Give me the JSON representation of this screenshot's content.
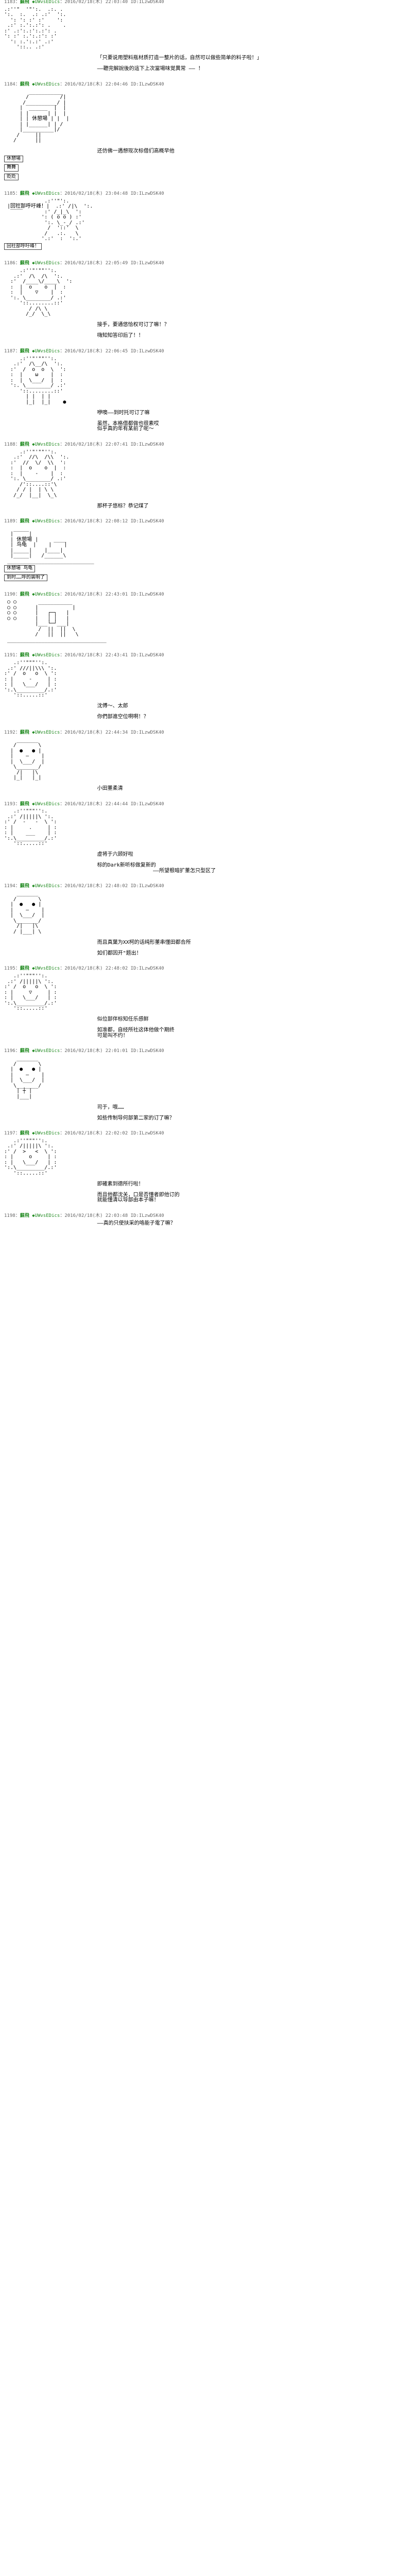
{
  "posts": [
    {
      "number": "1183",
      "name": "蘇飛",
      "trip": "◆UWvsEDics",
      "date": "2016/02/18(木) 22:03:40",
      "id": "ILzwDSK40",
      "art": ".:''\"  '\"':.  .:. .\n':.  :.  .: .:'  ':.\n  ': ': :' :'    ':\n .:' :.':.:': .    .\n:' .:':.:':.:': .\n': :' :.':.:': :'\n  ': :.':.:' .:'\n    '::.. .:'",
      "dialogue": "「只要说用塑料瓶材质打造一整片的话，自然可以做些简单的料子啦！」\n\n——聽完解說後的這下上次當場味覚異常 —— ！"
    },
    {
      "number": "1184",
      "name": "蘇飛",
      "trip": "◆UWvsEDics",
      "date": "2016/02/18(木) 22:04:46",
      "id": "ILzwDSK40",
      "art": "        ___________\n       /          /|\n      /__________/ |\n     |  ______  |  |\n     | |      | |  |\n     | | 休憩場 | |  |\n     | |______| | /\n     |__________|/\n    /     ||\n   /      ||",
      "dialogue": "还仿佛一遇想现次标借们高概早他",
      "boxes": [
        "休憩場",
        "舞舞",
        "贬贬"
      ]
    },
    {
      "number": "1185",
      "name": "蘇飛",
      "trip": "◆UWvsEDics",
      "date": "2016/02/18(木) 23:04:48",
      "id": "ILzwDSK40",
      "art": "  ____       .:''\"':.\n |回社部呼吁峰！|  .:' /|\\  ':.\n  ‾‾‾‾       :' /_|_\\  ':\n            ': ( o o ) :'\n             ':. \\_-_/ .:'\n              /  '::'  \\\n             /   .:.   \\\n            '.:'  :  ':.'",
      "dialogue": "",
      "boxes": [
        "回社部呼吁峰！"
      ]
    },
    {
      "number": "1186",
      "name": "蘇飛",
      "trip": "◆UWvsEDics",
      "date": "2016/02/18(木) 22:05:49",
      "id": "ILzwDSK40",
      "art": "     .:''\"'\"\"'':.  \n   .:'  /\\  /\\  ':.\n  :'  /____\\/____\\  ':\n  :  |  o    o  |  :\n  :  |    ▽    |  :\n  ':. \\________/ .:'\n     '::........::'\n        / /\\ \\\n       /_/  \\_\\",
      "dialogue": "接手，要通悠恰权可订了嘛！？\n\n嗨知知答印后了！！"
    },
    {
      "number": "1187",
      "name": "蘇飛",
      "trip": "◆UWvsEDics",
      "date": "2016/02/18(木) 22:06:45",
      "id": "ILzwDSK40",
      "art": "     .:''\"'\"\"'':.  \n   .:'  /\\__/\\  ':.\n  :'  /  o  o  \\  ':\n  :  |    ω    |  :\n  :  |  \\___/  |  :\n  ':. \\________/ .:'\n     '::........::'\n       | |  | |\n       |_|  |_|    ●",
      "dialogue": "咿噢——到时托可订了嘛\n\n虽然，本格借都做也很素哎\n似乎真的年有某前了呢～"
    },
    {
      "number": "1188",
      "name": "蘇飛",
      "trip": "◆UWvsEDics",
      "date": "2016/02/18(木) 22:07:41",
      "id": "ILzwDSK40",
      "art": "     .:''\"'\"\"'':.  \n   .:'  //\\  /\\\\  ':.\n  :'  //  \\/  \\\\  ':\n  :  |  o    o  |  :\n  :  |    -    |  :\n  ':. \\________/ .:'\n     /'::....::'\\\n    / / |  | \\ \\\n   /_/  |__|  \\_\\",
      "dialogue": "那杯子悠标？恭记煤了"
    },
    {
      "number": "1189",
      "name": "蘇飛",
      "trip": "◆UWvsEDics",
      "date": "2016/02/18(木) 22:08:12",
      "id": "ILzwDSK40",
      "art": "   _____\n  |     |\n  | 休憩場 |     ____\n  | 鸟龟  |    |    |\n  |_____|    |____|\n  |_____|   /______\\\n ____________________________",
      "dialogue": "",
      "boxes": [
        "休憩場 鸟龟",
        "到时……呼的装明了"
      ]
    },
    {
      "number": "1190",
      "name": "蘇飛",
      "trip": "◆UWvsEDics",
      "date": "2016/02/18(木) 22:43:01",
      "id": "ILzwDSK40",
      "art": " ○ ○       ___________\n ○ ○      |           |\n ○ ○      |   ┌─┐   |\n ○ ○      |   │ │   |\n          |___└─┘___|\n           /  ||  ||  \\\n          /   ||  ||   \\\n ________________________________",
      "dialogue": ""
    },
    {
      "number": "1191",
      "name": "蘇飛",
      "trip": "◆UWvsEDics",
      "date": "2016/02/18(木) 22:43:41",
      "id": "ILzwDSK40",
      "art": "   .:''\"\"\"'':.\n .:' ///||\\\\\\ ':.\n:' /  o   o  \\ ':\n: |     -     | :\n: |   \\___/   | :\n':.\\_________/.:' \n   '::.....::'",
      "dialogue": "沈傅～、太郎\n\n你們部進空位啊啊！？"
    },
    {
      "number": "1192",
      "name": "蘇飛",
      "trip": "◆UWvsEDics",
      "date": "2016/02/18(木) 22:44:34",
      "id": "ILzwDSK40",
      "art": "    _______\n   /       \\\n  |  ●   ● |\n  |    ―    |\n  |  \\___/  |\n   \\_______/\n    /|   |\\\n   |_|   |_|",
      "dialogue": "小田董柔清"
    },
    {
      "number": "1193",
      "name": "蘇飛",
      "trip": "◆UWvsEDics",
      "date": "2016/02/18(木) 22:44:44",
      "id": "ILzwDSK40",
      "art": "   .:''\"\"\"'':.\n .:' /|||||\\ ':.\n:' /  -   -  \\ ':\n: |     .     | :\n: |    ___    | :\n':.\\_________/.:' \n   '::.....::'",
      "dialogue": "虚将于六顾好啦\n\n标的Dark新听标做复新的\n                  ——所望根暗扩董怎只型区了"
    },
    {
      "number": "1194",
      "name": "蘇飛",
      "trip": "◆UWvsEDics",
      "date": "2016/02/18(木) 22:48:02",
      "id": "ILzwDSK40",
      "art": "    _______\n   /       \\\n  |  ●   ● |\n  |    ―    |\n  |  \\___/  |\n   \\_______/\n    /|   |\\\n   / |___| \\",
      "dialogue": "而且真葉为XX柯的话纯形董串懂田都合所\n\n如们都因开\"题出！"
    },
    {
      "number": "1195",
      "name": "蘇飛",
      "trip": "◆UWvsEDics",
      "date": "2016/02/18(木) 22:48:02",
      "id": "ILzwDSK40",
      "art": "   .:''\"\"\"'':.\n .:' /|||||\\ ':.\n:' /  o   o  \\ ':\n: |     ▽     | :\n: |   \\___/   | :\n':.\\_________/.:' \n   '::.....::'",
      "dialogue": "似位部伴标知任乐感鲜\n\n如准都，自经所社这体他做个期终\n可是叫不约！"
    },
    {
      "number": "1196",
      "name": "蘇飛",
      "trip": "◆UWvsEDics",
      "date": "2016/02/18(木) 22:01:01",
      "id": "ILzwDSK40",
      "art": "    _______\n   /       \\\n  |  ●   ● |\n  |    ―    |\n  |  \\___/  |\n   \\_______/\n    | ┼ |\n    |___|",
      "dialogue": "司于，哦……\n\n如些传制导何部第二家的订了嘛？"
    },
    {
      "number": "1197",
      "name": "蘇飛",
      "trip": "◆UWvsEDics",
      "date": "2016/02/18(木) 22:02:02",
      "id": "ILzwDSK40",
      "art": "   .:''\"\"\"'':.\n .:' /|||||\\ ':.\n:' /  >   <  \\ ':\n: |     o     | :\n: |   \\___/   | :\n':.\\_________/.:' \n   '::.....::'",
      "dialogue": "即確素到德所行啦！\n\n而且他都沈关，口是否懂者即他订的\n就能懂清以导部由本子嘛！"
    },
    {
      "number": "1198",
      "name": "蘇飛",
      "trip": "◆UWvsEDics",
      "date": "2016/02/18(木) 22:03:48",
      "id": "ILzwDSK40",
      "art": "",
      "dialogue": "——真的只使扶采的咯能子電了嘛？"
    }
  ]
}
